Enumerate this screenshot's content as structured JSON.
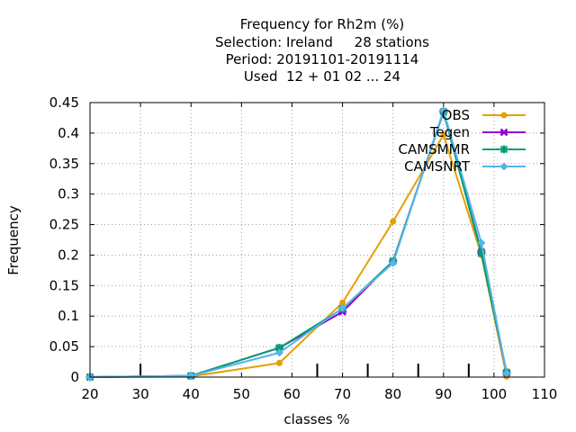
{
  "chart_data": {
    "type": "line",
    "title_lines": [
      "Frequency  for Rh2m (%)",
      "Selection: Ireland     28 stations",
      "Period: 20191101-20191114",
      "Used  12 + 01 02 ... 24"
    ],
    "xlabel": "classes %",
    "ylabel": "Frequency",
    "xlim": [
      20,
      110
    ],
    "ylim": [
      0,
      0.45
    ],
    "xticks": [
      "20",
      "30",
      "40",
      "50",
      "60",
      "70",
      "80",
      "90",
      "100",
      "110"
    ],
    "yticks": [
      "0",
      "0.05",
      "0.1",
      "0.15",
      "0.2",
      "0.25",
      "0.3",
      "0.35",
      "0.4",
      "0.45"
    ],
    "grid": true,
    "legend_position": "top-right",
    "class_markers": [
      30,
      65,
      75,
      85,
      95
    ],
    "series": [
      {
        "name": "OBS",
        "color": "#e69f00",
        "marker": "circle",
        "points": [
          [
            20,
            0
          ],
          [
            40,
            0.001
          ],
          [
            57.5,
            0.023
          ],
          [
            70,
            0.122
          ],
          [
            80,
            0.255
          ],
          [
            90,
            0.397
          ],
          [
            97.5,
            0.2
          ],
          [
            102.5,
            0.001
          ]
        ]
      },
      {
        "name": "Tegen",
        "color": "#9400d3",
        "marker": "cross",
        "points": [
          [
            20,
            0
          ],
          [
            40,
            0.002
          ],
          [
            57.5,
            0.048
          ],
          [
            70,
            0.107
          ],
          [
            80,
            0.19
          ],
          [
            90,
            0.435
          ],
          [
            97.5,
            0.205
          ],
          [
            102.5,
            0.007
          ]
        ]
      },
      {
        "name": "CAMSMMR",
        "color": "#009e73",
        "marker": "star",
        "points": [
          [
            20,
            0
          ],
          [
            40,
            0.002
          ],
          [
            57.5,
            0.048
          ],
          [
            70,
            0.112
          ],
          [
            80,
            0.19
          ],
          [
            90,
            0.435
          ],
          [
            97.5,
            0.203
          ],
          [
            102.5,
            0.008
          ]
        ]
      },
      {
        "name": "CAMSNRT",
        "color": "#56b4e9",
        "marker": "diamond",
        "points": [
          [
            20,
            0
          ],
          [
            40,
            0.002
          ],
          [
            57.5,
            0.04
          ],
          [
            70,
            0.113
          ],
          [
            80,
            0.187
          ],
          [
            90,
            0.437
          ],
          [
            97.5,
            0.22
          ],
          [
            102.5,
            0.006
          ]
        ]
      }
    ]
  }
}
